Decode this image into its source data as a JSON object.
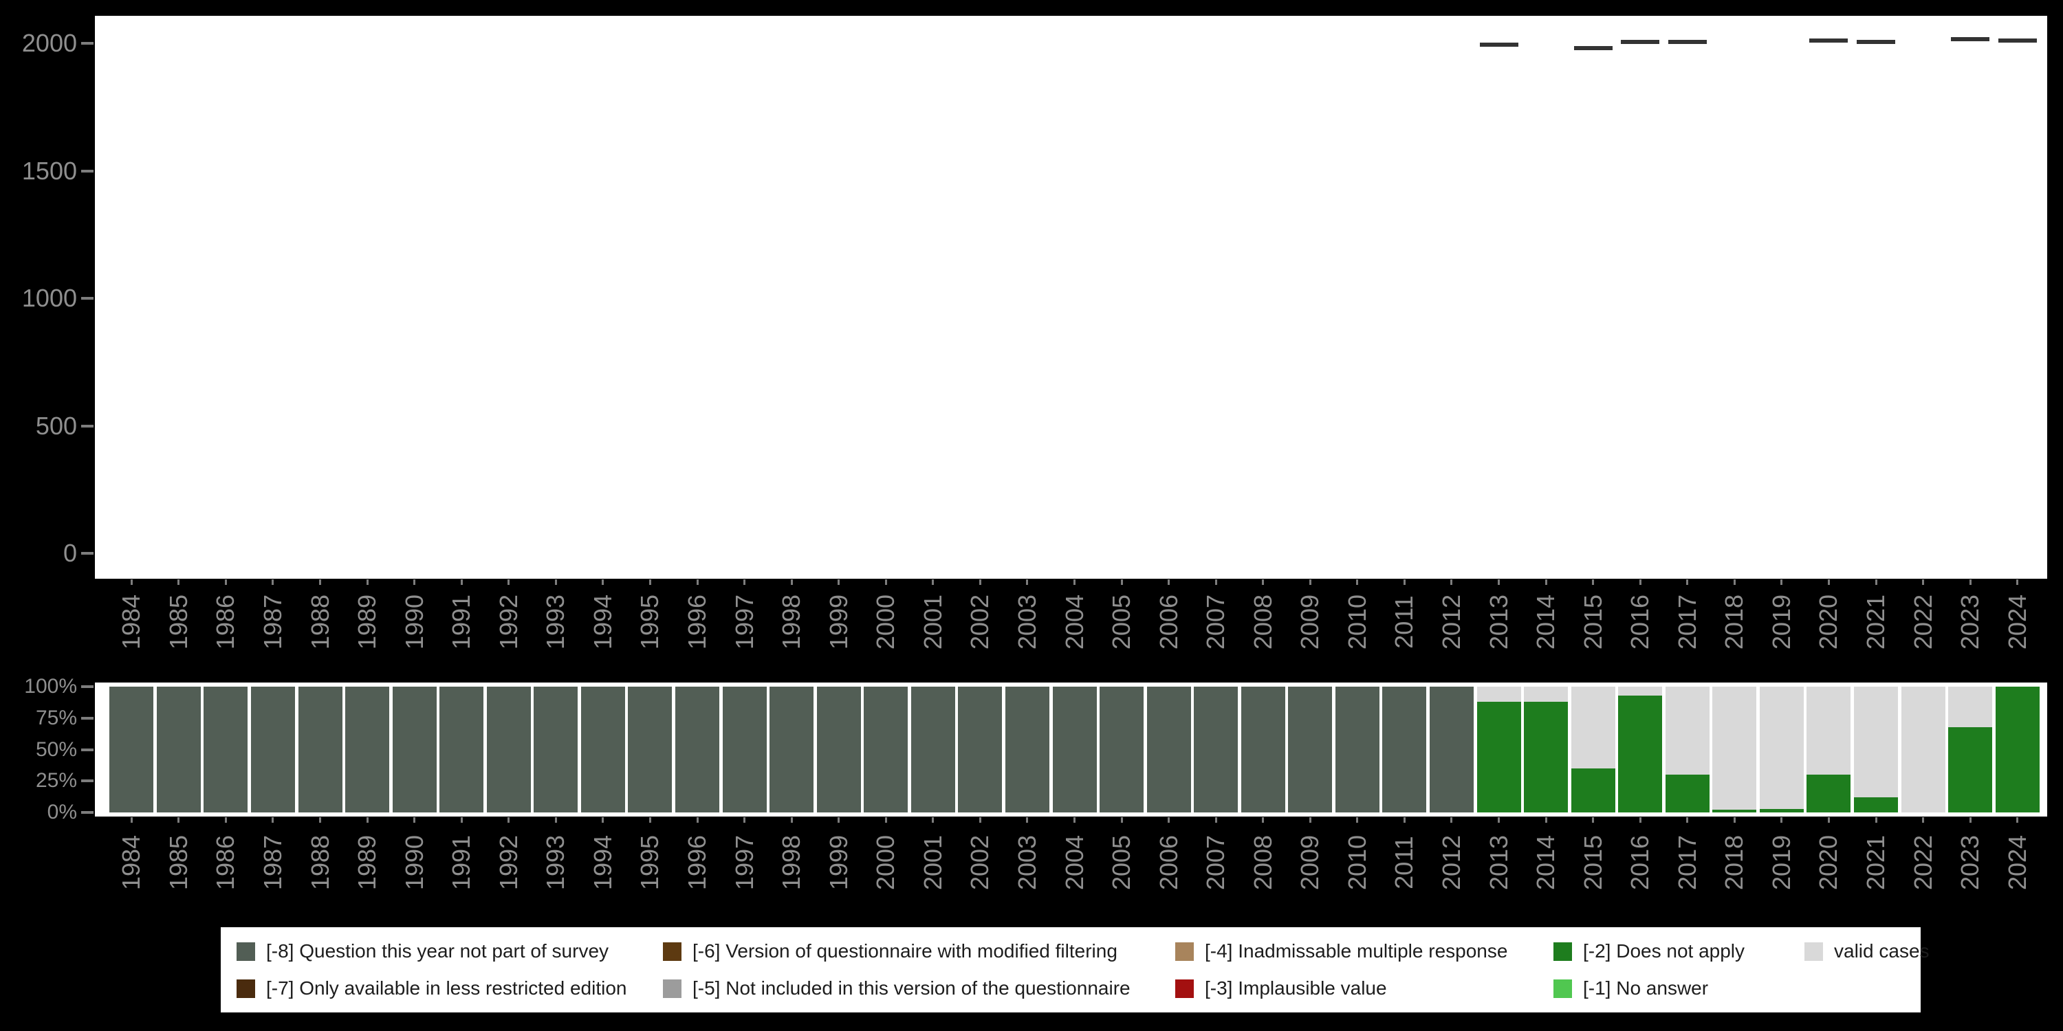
{
  "colors": {
    "background": "#000000",
    "plot_background": "#ffffff",
    "axis_text": "#8f8f8f",
    "tick": "#7d7d7d",
    "case_dash": "#333333",
    "legend_background": "#ffffff",
    "legend_text": "#1d1d1d"
  },
  "chart_data": [
    {
      "type": "bar",
      "marker": "dash",
      "title": "",
      "xlabel": "",
      "ylabel": "",
      "ylim": [
        0,
        2100
      ],
      "yticks": [
        0,
        500,
        1000,
        1500,
        2000
      ],
      "grid": false,
      "x": [
        "1984",
        "1985",
        "1986",
        "1987",
        "1988",
        "1989",
        "1990",
        "1991",
        "1992",
        "1993",
        "1994",
        "1995",
        "1996",
        "1997",
        "1998",
        "1999",
        "2000",
        "2001",
        "2002",
        "2003",
        "2004",
        "2005",
        "2006",
        "2007",
        "2008",
        "2009",
        "2010",
        "2011",
        "2012",
        "2013",
        "2014",
        "2015",
        "2016",
        "2017",
        "2018",
        "2019",
        "2020",
        "2021",
        "2022",
        "2023",
        "2024"
      ],
      "values": [
        null,
        null,
        null,
        null,
        null,
        null,
        null,
        null,
        null,
        null,
        null,
        null,
        null,
        null,
        null,
        null,
        null,
        null,
        null,
        null,
        null,
        null,
        null,
        null,
        null,
        null,
        null,
        null,
        null,
        1995,
        null,
        1980,
        2005,
        2005,
        null,
        null,
        2010,
        2005,
        null,
        2015,
        2010
      ],
      "marker_color": "#333333"
    },
    {
      "type": "bar",
      "stacked": true,
      "unit": "percent",
      "title": "",
      "xlabel": "",
      "ylabel": "",
      "ylim": [
        0,
        100
      ],
      "yticks": [
        0,
        25,
        50,
        75,
        100
      ],
      "yticklabels": [
        "0%",
        "25%",
        "50%",
        "75%",
        "100%"
      ],
      "grid": false,
      "legend_position": "bottom",
      "categories": [
        "1984",
        "1985",
        "1986",
        "1987",
        "1988",
        "1989",
        "1990",
        "1991",
        "1992",
        "1993",
        "1994",
        "1995",
        "1996",
        "1997",
        "1998",
        "1999",
        "2000",
        "2001",
        "2002",
        "2003",
        "2004",
        "2005",
        "2006",
        "2007",
        "2008",
        "2009",
        "2010",
        "2011",
        "2012",
        "2013",
        "2014",
        "2015",
        "2016",
        "2017",
        "2018",
        "2019",
        "2020",
        "2021",
        "2022",
        "2023",
        "2024"
      ],
      "series": [
        {
          "name": "[-8] Question this year not part of survey",
          "color": "#525e55",
          "values": [
            100,
            100,
            100,
            100,
            100,
            100,
            100,
            100,
            100,
            100,
            100,
            100,
            100,
            100,
            100,
            100,
            100,
            100,
            100,
            100,
            100,
            100,
            100,
            100,
            100,
            100,
            100,
            100,
            100,
            0,
            0,
            0,
            0,
            0,
            0,
            0,
            0,
            0,
            0,
            0,
            0
          ]
        },
        {
          "name": "[-2] Does not apply",
          "color": "#1e7d1e",
          "values": [
            0,
            0,
            0,
            0,
            0,
            0,
            0,
            0,
            0,
            0,
            0,
            0,
            0,
            0,
            0,
            0,
            0,
            0,
            0,
            0,
            0,
            0,
            0,
            0,
            0,
            0,
            0,
            0,
            0,
            88,
            88,
            35,
            93,
            30,
            2,
            3,
            30,
            12,
            0,
            68,
            100
          ]
        },
        {
          "name": "valid cases",
          "color": "#d9d9d9",
          "values": [
            0,
            0,
            0,
            0,
            0,
            0,
            0,
            0,
            0,
            0,
            0,
            0,
            0,
            0,
            0,
            0,
            0,
            0,
            0,
            0,
            0,
            0,
            0,
            0,
            0,
            0,
            0,
            0,
            0,
            12,
            12,
            65,
            7,
            70,
            98,
            97,
            70,
            88,
            100,
            32,
            0
          ]
        }
      ]
    }
  ],
  "legend": {
    "rows": [
      [
        {
          "label": "[-8] Question this year not part of survey",
          "color": "#525e55"
        },
        {
          "label": "[-6] Version of questionnaire with modified filtering",
          "color": "#5d3a11"
        },
        {
          "label": "[-4] Inadmissable multiple response",
          "color": "#a8845c"
        },
        {
          "label": "[-2] Does not apply",
          "color": "#1e7d1e"
        },
        {
          "label": "valid cases",
          "color": "#d9d9d9"
        }
      ],
      [
        {
          "label": "[-7] Only available in less restricted edition",
          "color": "#4a2b0e"
        },
        {
          "label": "[-5] Not included in this version of the questionnaire",
          "color": "#9c9c9c"
        },
        {
          "label": "[-3] Implausible value",
          "color": "#a31010"
        },
        {
          "label": "[-1] No answer",
          "color": "#50c750"
        }
      ]
    ]
  }
}
